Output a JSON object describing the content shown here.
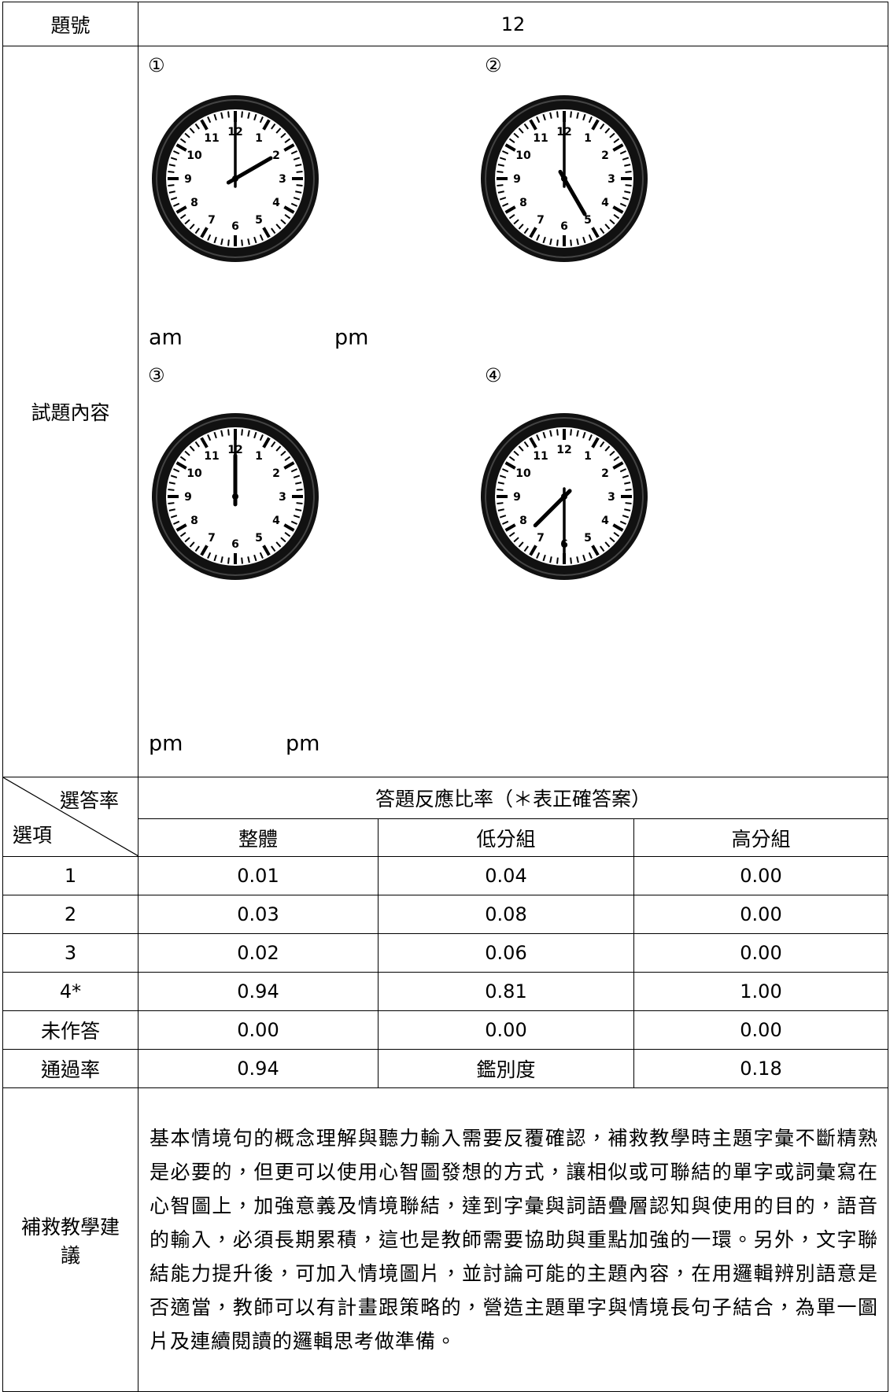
{
  "header": {
    "label": "題號",
    "value": "12"
  },
  "content": {
    "label": "試題內容",
    "dial_numbers": [
      "12",
      "1",
      "2",
      "3",
      "4",
      "5",
      "6",
      "7",
      "8",
      "9",
      "10",
      "11"
    ],
    "options": [
      {
        "marker": "①",
        "caption": "am"
      },
      {
        "marker": "②",
        "caption": "pm"
      },
      {
        "marker": "③",
        "caption": "pm"
      },
      {
        "marker": "④",
        "caption": "pm"
      }
    ]
  },
  "response_table": {
    "corner_top": "選答率",
    "corner_bottom": "選項",
    "title": "答題反應比率（＊表正確答案）",
    "columns": [
      "整體",
      "低分組",
      "高分組"
    ],
    "rows": [
      [
        "1",
        "0.01",
        "0.04",
        "0.00"
      ],
      [
        "2",
        "0.03",
        "0.08",
        "0.00"
      ],
      [
        "3",
        "0.02",
        "0.06",
        "0.00"
      ],
      [
        "4*",
        "0.94",
        "0.81",
        "1.00"
      ],
      [
        "未作答",
        "0.00",
        "0.00",
        "0.00"
      ]
    ],
    "summary": [
      "通過率",
      "0.94",
      "鑑別度",
      "0.18"
    ]
  },
  "advice": {
    "label": "補救教學建議",
    "text": "基本情境句的概念理解與聽力輸入需要反覆確認，補救教學時主題字彙不斷精熟是必要的，但更可以使用心智圖發想的方式，讓相似或可聯結的單字或詞彙寫在心智圖上，加強意義及情境聯結，達到字彙與詞語疊層認知與使用的目的，語音的輸入，必須長期累積，這也是教師需要協助與重點加強的一環。另外，文字聯結能力提升後，可加入情境圖片，並討論可能的主題內容，在用邏輯辨別語意是否適當，教師可以有計畫跟策略的，營造主題單字與情境長句子結合，為單一圖片及連續閱讀的邏輯思考做準備。"
  }
}
